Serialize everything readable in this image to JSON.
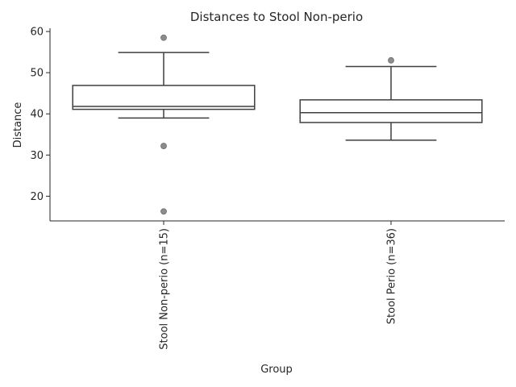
{
  "chart_data": {
    "type": "box",
    "title": "Distances to Stool Non-perio",
    "xlabel": "Group",
    "ylabel": "Distance",
    "ylim": [
      14,
      60.8
    ],
    "yticks": [
      20,
      30,
      40,
      50,
      60
    ],
    "grid": false,
    "categories": [
      "Stool Non-perio (n=15)",
      "Stool Perio (n=36)"
    ],
    "boxes": [
      {
        "whisker_low": 39.0,
        "q1": 41.1,
        "median": 41.8,
        "q3": 46.9,
        "whisker_high": 54.9,
        "outliers": [
          58.5,
          32.2,
          16.3
        ]
      },
      {
        "whisker_low": 33.6,
        "q1": 37.9,
        "median": 40.3,
        "q3": 43.4,
        "whisker_high": 51.5,
        "outliers": [
          53.0
        ]
      }
    ],
    "colors": {
      "box_line": "#3f3f3f",
      "outlier_fill": "#8c8c8c",
      "axis": "#262626"
    }
  }
}
